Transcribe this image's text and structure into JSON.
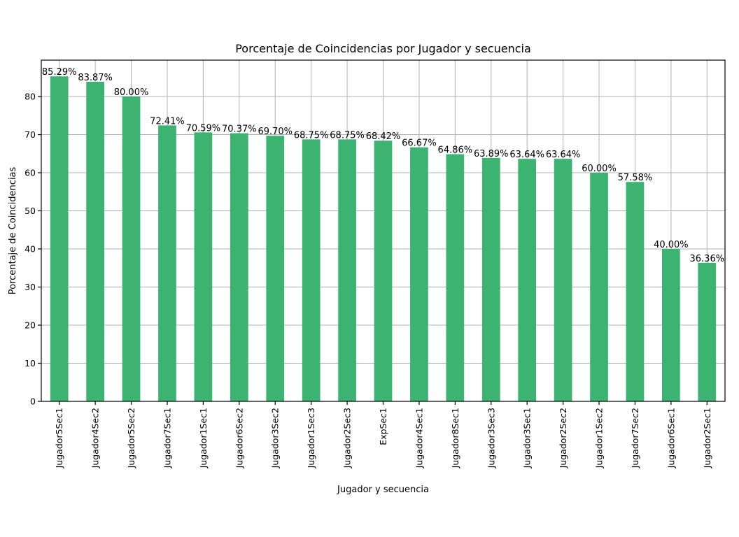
{
  "chart_data": {
    "type": "bar",
    "title": "Porcentaje de Coincidencias por Jugador  y secuencia",
    "xlabel": "Jugador  y secuencia",
    "ylabel": "Porcentaje de Coincidencias",
    "categories": [
      "Jugador5Sec1",
      "Jugador4Sec2",
      "Jugador5Sec2",
      "Jugador7Sec1",
      "Jugador1Sec1",
      "Jugador6Sec2",
      "Jugador3Sec2",
      "Jugador1Sec3",
      "Jugador2Sec3",
      "ExpSec1",
      "Jugador4Sec1",
      "Jugador8Sec1",
      "Jugador3Sec3",
      "Jugador3Sec1",
      "Jugador2Sec2",
      "Jugador1Sec2",
      "Jugador7Sec2",
      "Jugador6Sec1",
      "Jugador2Sec1"
    ],
    "values": [
      85.29,
      83.87,
      80.0,
      72.41,
      70.59,
      70.37,
      69.7,
      68.75,
      68.75,
      68.42,
      66.67,
      64.86,
      63.89,
      63.64,
      63.64,
      60.0,
      57.58,
      40.0,
      36.36
    ],
    "data_labels": [
      "85.29%",
      "83.87%",
      "80.00%",
      "72.41%",
      "70.59%",
      "70.37%",
      "69.70%",
      "68.75%",
      "68.75%",
      "68.42%",
      "66.67%",
      "64.86%",
      "63.89%",
      "63.64%",
      "63.64%",
      "60.00%",
      "57.58%",
      "40.00%",
      "36.36%"
    ],
    "yticks": [
      0,
      10,
      20,
      30,
      40,
      50,
      60,
      70,
      80
    ],
    "ylim": [
      0,
      89.55
    ],
    "grid": true,
    "bar_color": "#3cb371"
  }
}
